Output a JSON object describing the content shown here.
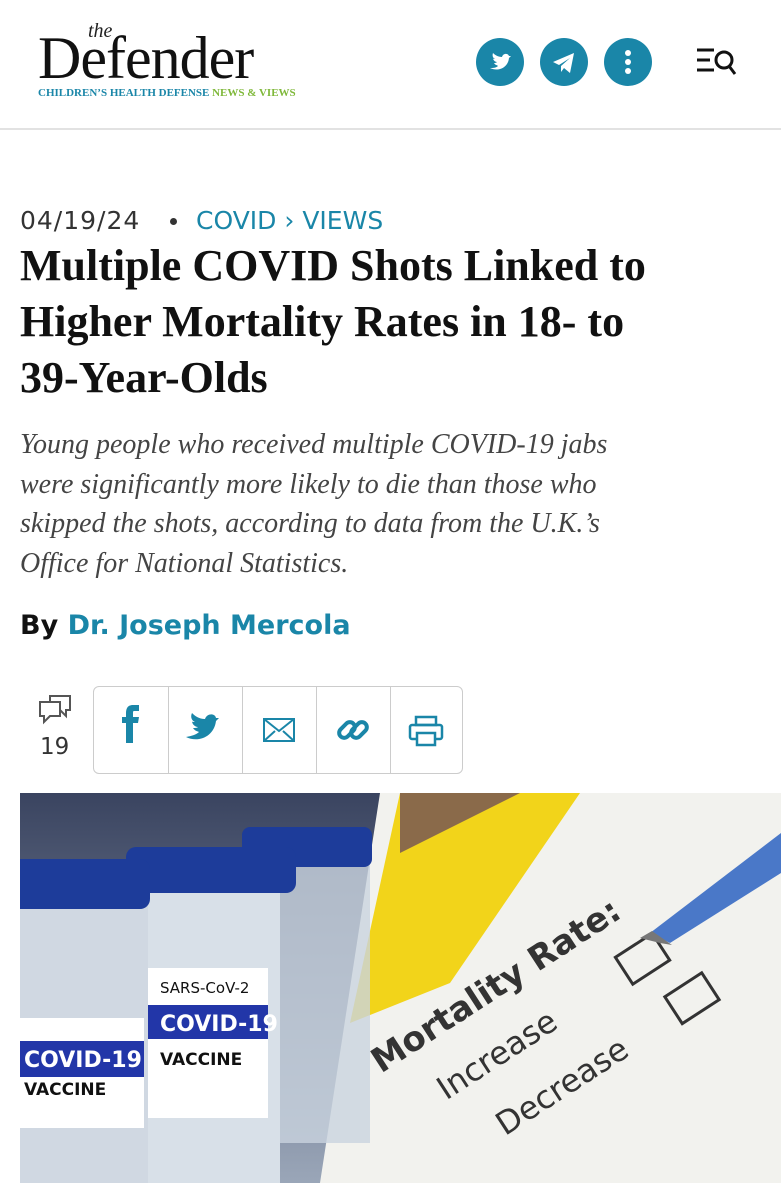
{
  "header": {
    "logo_small": "the",
    "logo": "Defender",
    "tagline": "CHILDREN’S HEALTH DEFENSE",
    "tagline_suffix": "NEWS & VIEWS"
  },
  "article": {
    "date": "04/19/24",
    "category": "COVID",
    "breadcrumb_sep": "›",
    "subcategory": "VIEWS",
    "title_lines": [
      "Multiple COVID Shots Linked to",
      "Higher Mortality Rates in 18- to",
      "39-Year-Olds"
    ],
    "subtitle_lines": [
      "Young people who received multiple COVID-19 jabs",
      "were significantly more likely to die than those who",
      "skipped the shots, according to data from the U.K.’s",
      "Office for National Statistics."
    ],
    "byline_prefix": "By",
    "author": "Dr. Joseph Mercola",
    "comment_count": 19
  },
  "image": {
    "vial_label_1": "SARS-CoV-2",
    "vial_label_2": "COVID-19",
    "vial_label_3": "VACCINE",
    "form_heading": "Mortality Rate:",
    "option_1": "Increase",
    "option_2": "Decrease"
  }
}
